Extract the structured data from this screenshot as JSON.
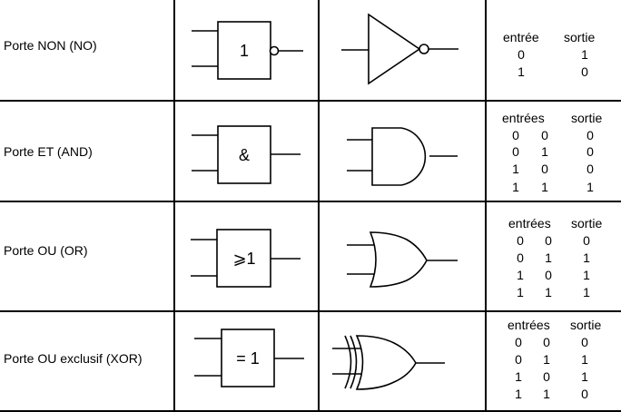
{
  "gates": [
    {
      "name": "Porte NON (NO)",
      "iec_symbol": "1",
      "table_headers": [
        "entrée",
        "sortie"
      ],
      "rows": [
        [
          "0",
          "1"
        ],
        [
          "1",
          "0"
        ]
      ]
    },
    {
      "name": "Porte ET (AND)",
      "iec_symbol": "&",
      "table_headers": [
        "entrées",
        "sortie"
      ],
      "rows": [
        [
          "0",
          "0",
          "0"
        ],
        [
          "0",
          "1",
          "0"
        ],
        [
          "1",
          "0",
          "0"
        ],
        [
          "1",
          "1",
          "1"
        ]
      ]
    },
    {
      "name": "Porte OU (OR)",
      "iec_symbol": "⩾1",
      "table_headers": [
        "entrées",
        "sortie"
      ],
      "rows": [
        [
          "0",
          "0",
          "0"
        ],
        [
          "0",
          "1",
          "1"
        ],
        [
          "1",
          "0",
          "1"
        ],
        [
          "1",
          "1",
          "1"
        ]
      ]
    },
    {
      "name": "Porte OU exclusif (XOR)",
      "iec_symbol": "= 1",
      "table_headers": [
        "entrées",
        "sortie"
      ],
      "rows": [
        [
          "0",
          "0",
          "0"
        ],
        [
          "0",
          "1",
          "1"
        ],
        [
          "1",
          "0",
          "1"
        ],
        [
          "1",
          "1",
          "0"
        ]
      ]
    }
  ]
}
